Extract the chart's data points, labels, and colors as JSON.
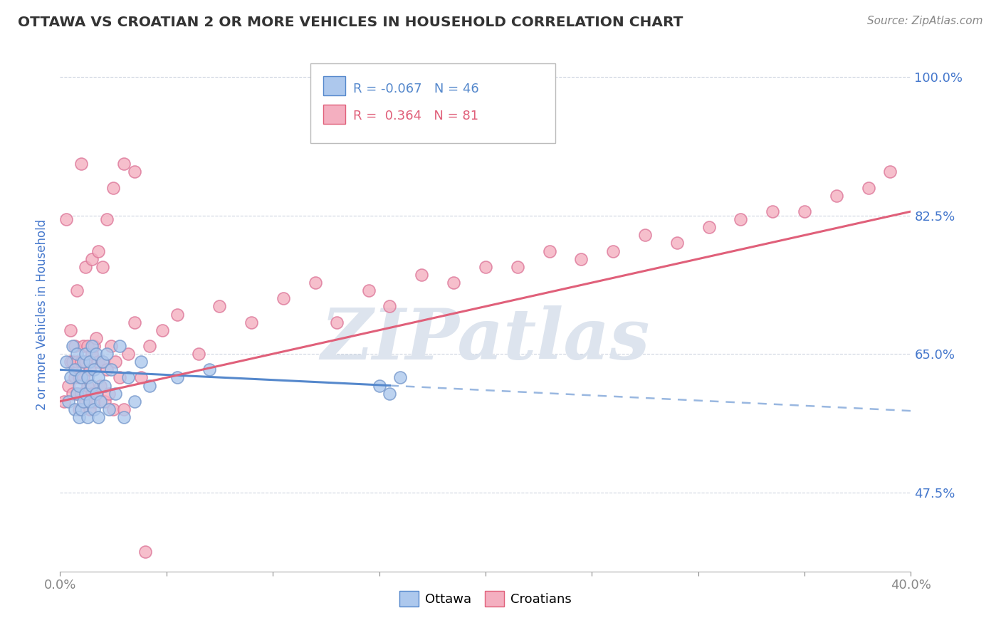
{
  "title": "OTTAWA VS CROATIAN 2 OR MORE VEHICLES IN HOUSEHOLD CORRELATION CHART",
  "source": "Source: ZipAtlas.com",
  "ylabel": "2 or more Vehicles in Household",
  "xlim": [
    0.0,
    0.4
  ],
  "ylim": [
    0.375,
    1.025
  ],
  "yticks": [
    0.475,
    0.65,
    0.825,
    1.0
  ],
  "ytick_labels": [
    "47.5%",
    "65.0%",
    "82.5%",
    "100.0%"
  ],
  "xticks": [
    0.0,
    0.05,
    0.1,
    0.15,
    0.2,
    0.25,
    0.3,
    0.35,
    0.4
  ],
  "legend_r_ottawa": "-0.067",
  "legend_n_ottawa": "46",
  "legend_r_croatians": "0.364",
  "legend_n_croatians": "81",
  "ottawa_color": "#adc8ed",
  "croatians_color": "#f4afc0",
  "trendline_ottawa_color": "#5588cc",
  "trendline_croatians_color": "#e0607a",
  "background_color": "#ffffff",
  "title_color": "#333333",
  "axis_label_color": "#4477cc",
  "tick_label_color": "#4477cc",
  "grid_color": "#c8d0dc",
  "watermark": "ZIPatlas",
  "ottawa_x": [
    0.003,
    0.004,
    0.005,
    0.006,
    0.007,
    0.007,
    0.008,
    0.008,
    0.009,
    0.009,
    0.01,
    0.01,
    0.011,
    0.011,
    0.012,
    0.012,
    0.013,
    0.013,
    0.014,
    0.014,
    0.015,
    0.015,
    0.016,
    0.016,
    0.017,
    0.017,
    0.018,
    0.018,
    0.019,
    0.02,
    0.021,
    0.022,
    0.023,
    0.024,
    0.026,
    0.028,
    0.03,
    0.032,
    0.035,
    0.038,
    0.042,
    0.055,
    0.07,
    0.15,
    0.155,
    0.16
  ],
  "ottawa_y": [
    0.64,
    0.59,
    0.62,
    0.66,
    0.58,
    0.63,
    0.6,
    0.65,
    0.57,
    0.61,
    0.58,
    0.62,
    0.59,
    0.64,
    0.6,
    0.65,
    0.57,
    0.62,
    0.59,
    0.64,
    0.61,
    0.66,
    0.58,
    0.63,
    0.6,
    0.65,
    0.57,
    0.62,
    0.59,
    0.64,
    0.61,
    0.65,
    0.58,
    0.63,
    0.6,
    0.66,
    0.57,
    0.62,
    0.59,
    0.64,
    0.61,
    0.62,
    0.63,
    0.61,
    0.6,
    0.62
  ],
  "croatians_x": [
    0.002,
    0.003,
    0.004,
    0.005,
    0.005,
    0.006,
    0.006,
    0.007,
    0.007,
    0.008,
    0.008,
    0.009,
    0.009,
    0.01,
    0.01,
    0.011,
    0.011,
    0.012,
    0.012,
    0.013,
    0.013,
    0.014,
    0.014,
    0.015,
    0.015,
    0.016,
    0.016,
    0.017,
    0.017,
    0.018,
    0.019,
    0.02,
    0.021,
    0.022,
    0.023,
    0.024,
    0.025,
    0.026,
    0.028,
    0.03,
    0.032,
    0.035,
    0.038,
    0.042,
    0.048,
    0.055,
    0.065,
    0.075,
    0.09,
    0.105,
    0.12,
    0.13,
    0.145,
    0.155,
    0.17,
    0.185,
    0.2,
    0.215,
    0.23,
    0.245,
    0.26,
    0.275,
    0.29,
    0.305,
    0.32,
    0.335,
    0.35,
    0.365,
    0.38,
    0.39,
    0.008,
    0.01,
    0.012,
    0.015,
    0.018,
    0.02,
    0.022,
    0.025,
    0.03,
    0.035,
    0.04
  ],
  "croatians_y": [
    0.59,
    0.82,
    0.61,
    0.64,
    0.68,
    0.6,
    0.64,
    0.62,
    0.66,
    0.6,
    0.64,
    0.58,
    0.62,
    0.6,
    0.64,
    0.62,
    0.66,
    0.59,
    0.64,
    0.61,
    0.66,
    0.58,
    0.63,
    0.6,
    0.65,
    0.59,
    0.66,
    0.6,
    0.67,
    0.64,
    0.61,
    0.64,
    0.59,
    0.63,
    0.6,
    0.66,
    0.58,
    0.64,
    0.62,
    0.58,
    0.65,
    0.69,
    0.62,
    0.66,
    0.68,
    0.7,
    0.65,
    0.71,
    0.69,
    0.72,
    0.74,
    0.69,
    0.73,
    0.71,
    0.75,
    0.74,
    0.76,
    0.76,
    0.78,
    0.77,
    0.78,
    0.8,
    0.79,
    0.81,
    0.82,
    0.83,
    0.83,
    0.85,
    0.86,
    0.88,
    0.73,
    0.89,
    0.76,
    0.77,
    0.78,
    0.76,
    0.82,
    0.86,
    0.89,
    0.88,
    0.4
  ],
  "trendline_ottawa_x0": 0.0,
  "trendline_ottawa_x1": 0.155,
  "trendline_ottawa_y0": 0.63,
  "trendline_ottawa_y1": 0.61,
  "trendline_dash_x0": 0.155,
  "trendline_dash_x1": 0.4,
  "trendline_dash_y0": 0.61,
  "trendline_dash_y1": 0.578,
  "trendline_croatians_x0": 0.0,
  "trendline_croatians_x1": 0.4,
  "trendline_croatians_y0": 0.59,
  "trendline_croatians_y1": 0.83
}
